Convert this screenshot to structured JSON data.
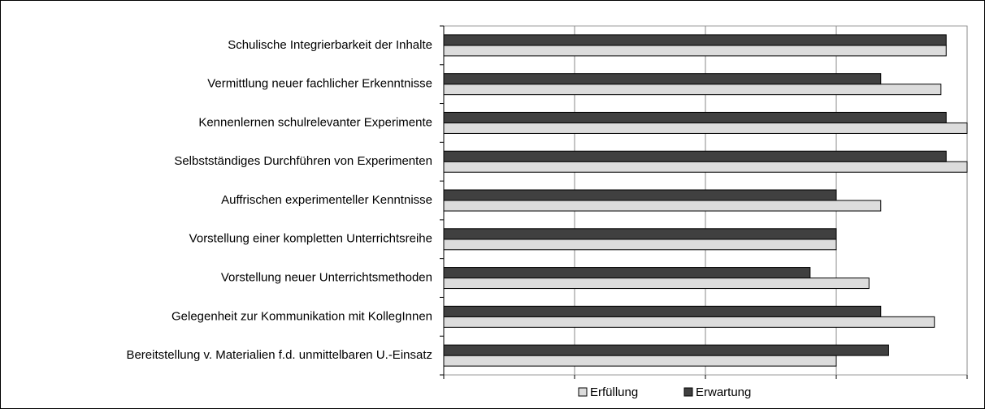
{
  "chart_data": {
    "type": "bar",
    "orientation": "horizontal",
    "categories": [
      "Schulische Integrierbarkeit der Inhalte",
      "Vermittlung neuer fachlicher Erkenntnisse",
      "Kennenlernen schulrelevanter Experimente",
      "Selbstständiges Durchführen von Experimenten",
      "Auffrischen experimenteller Kenntnisse",
      "Vorstellung einer kompletten Unterrichtsreihe",
      "Vorstellung neuer Unterrichtsmethoden",
      "Gelegenheit zur Kommunikation mit KollegInnen",
      "Bereitstellung v. Materialien f.d. unmittelbaren U.-Einsatz"
    ],
    "series": [
      {
        "name": "Erfüllung",
        "color": "#dcdcdc",
        "values": [
          3.84,
          3.8,
          4.0,
          4.0,
          3.34,
          3.0,
          3.25,
          3.75,
          3.0
        ]
      },
      {
        "name": "Erwartung",
        "color": "#404040",
        "values": [
          3.84,
          3.34,
          3.84,
          3.84,
          3.0,
          3.0,
          2.8,
          3.34,
          3.4
        ]
      }
    ],
    "xlim": [
      0,
      4
    ],
    "xticks": [
      0,
      1,
      2,
      3,
      4
    ],
    "grid": true,
    "legend": "bottom"
  }
}
